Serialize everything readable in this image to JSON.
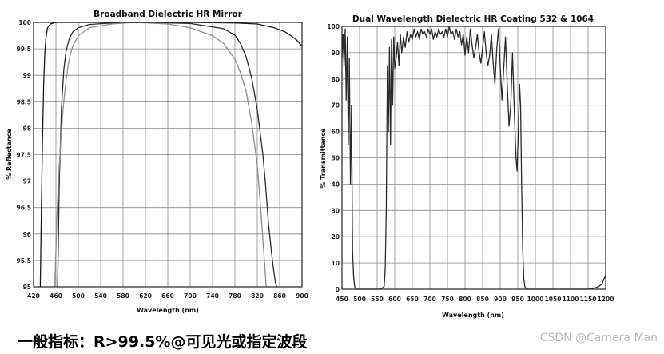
{
  "caption": "一般指标：R>99.5%@可见光或指定波段",
  "watermark": "CSDN @Camera Man",
  "chart_data": [
    {
      "type": "line",
      "title": "Broadband Dielectric HR Mirror",
      "xlabel": "Wavelength (nm)",
      "ylabel": "% Reflectance",
      "xlim": [
        420,
        900
      ],
      "ylim": [
        95,
        100
      ],
      "x_ticks": [
        "420",
        "460",
        "500",
        "540",
        "580",
        "620",
        "660",
        "700",
        "740",
        "780",
        "820",
        "860",
        "900"
      ],
      "y_ticks": [
        "100",
        "99.5",
        "99",
        "98.5",
        "98",
        "97.5",
        "97",
        "96.5",
        "96",
        "95.5",
        "95"
      ],
      "grid": true,
      "series": [
        {
          "x": [
            432,
            434,
            436,
            438,
            440,
            442,
            445,
            450,
            460,
            480,
            520,
            580,
            620,
            700,
            780,
            820,
            850,
            870,
            880,
            890,
            900
          ],
          "y": [
            95,
            96.5,
            97.8,
            98.8,
            99.4,
            99.7,
            99.9,
            99.97,
            100,
            100,
            100,
            100,
            100,
            100,
            99.99,
            99.97,
            99.9,
            99.82,
            99.75,
            99.67,
            99.55
          ],
          "color": "#1a1a1a"
        },
        {
          "x": [
            463,
            466,
            470,
            474,
            478,
            484,
            490,
            500,
            520,
            560,
            620,
            700,
            760,
            780,
            790,
            800,
            810,
            820,
            830,
            835,
            840,
            846,
            850,
            853,
            855
          ],
          "y": [
            95,
            97,
            98.4,
            99.1,
            99.45,
            99.7,
            99.82,
            99.9,
            99.96,
            99.99,
            100,
            99.98,
            99.88,
            99.76,
            99.6,
            99.35,
            98.95,
            98.35,
            97.5,
            96.9,
            96.2,
            95.6,
            95.25,
            95.05,
            95
          ],
          "color": "#2a2a2a"
        },
        {
          "x": [
            458,
            462,
            466,
            470,
            474,
            478,
            482,
            486,
            490,
            500,
            520,
            560,
            600,
            660,
            700,
            740,
            760,
            780,
            790,
            800,
            810,
            820,
            826,
            830,
            834,
            836
          ],
          "y": [
            95,
            96.4,
            97.3,
            98.0,
            98.5,
            98.9,
            99.2,
            99.4,
            99.55,
            99.75,
            99.9,
            99.97,
            100,
            99.97,
            99.9,
            99.75,
            99.6,
            99.3,
            99.05,
            98.7,
            98.1,
            97.3,
            96.5,
            95.9,
            95.3,
            95
          ],
          "color": "#8c8c8c"
        }
      ]
    },
    {
      "type": "line",
      "title": "Dual Wavelength Dielectric HR Coating 532 & 1064",
      "xlabel": "Wavelength (nm)",
      "ylabel": "% Transmittance",
      "xlim": [
        450,
        1200
      ],
      "ylim": [
        0,
        100
      ],
      "x_ticks": [
        "450",
        "500",
        "550",
        "600",
        "650",
        "700",
        "750",
        "800",
        "850",
        "900",
        "950",
        "1000",
        "1050",
        "1100",
        "1150",
        "1200"
      ],
      "y_ticks": [
        "100",
        "90",
        "80",
        "70",
        "60",
        "50",
        "40",
        "30",
        "20",
        "10",
        "0"
      ],
      "grid": true,
      "series": [
        {
          "x": [
            450,
            453,
            456,
            459,
            462,
            465,
            468,
            471,
            474,
            477,
            480,
            483,
            486,
            490,
            495,
            500,
            520,
            560,
            570,
            573,
            576,
            579,
            582,
            585,
            588,
            591,
            594,
            597,
            600,
            604,
            608,
            612,
            616,
            620,
            625,
            630,
            635,
            640,
            645,
            650,
            655,
            660,
            665,
            670,
            675,
            680,
            685,
            690,
            695,
            700,
            705,
            710,
            715,
            720,
            725,
            730,
            735,
            740,
            745,
            750,
            755,
            760,
            765,
            770,
            775,
            780,
            785,
            790,
            795,
            800,
            805,
            810,
            815,
            820,
            825,
            830,
            835,
            840,
            845,
            850,
            855,
            860,
            865,
            870,
            875,
            880,
            885,
            890,
            895,
            900,
            905,
            910,
            915,
            920,
            925,
            930,
            935,
            940,
            945,
            948,
            952,
            955,
            958,
            961,
            964,
            967,
            970,
            975,
            980,
            1000,
            1050,
            1100,
            1150,
            1170,
            1180,
            1190,
            1195,
            1200
          ],
          "y": [
            88,
            97,
            85,
            99,
            72,
            96,
            55,
            88,
            40,
            70,
            15,
            5,
            1,
            0,
            0,
            0,
            0,
            0,
            1,
            8,
            30,
            85,
            60,
            92,
            55,
            95,
            70,
            96,
            84,
            88,
            94,
            85,
            97,
            90,
            96,
            92,
            98,
            94,
            97,
            95,
            99,
            96,
            98,
            95,
            99,
            97,
            98,
            96,
            99,
            97,
            99,
            95,
            98,
            96,
            99,
            97,
            98,
            96,
            99,
            96,
            100,
            97,
            98,
            95,
            99,
            96,
            98,
            93,
            97,
            89,
            96,
            90,
            99,
            93,
            88,
            92,
            97,
            90,
            86,
            92,
            98,
            90,
            85,
            89,
            97,
            86,
            78,
            91,
            99,
            85,
            72,
            84,
            96,
            78,
            62,
            70,
            90,
            68,
            50,
            45,
            62,
            78,
            70,
            40,
            15,
            4,
            1,
            0,
            0,
            0,
            0,
            0,
            0,
            0.5,
            1,
            2,
            4,
            5
          ],
          "color": "#2a2a2a"
        }
      ]
    }
  ]
}
